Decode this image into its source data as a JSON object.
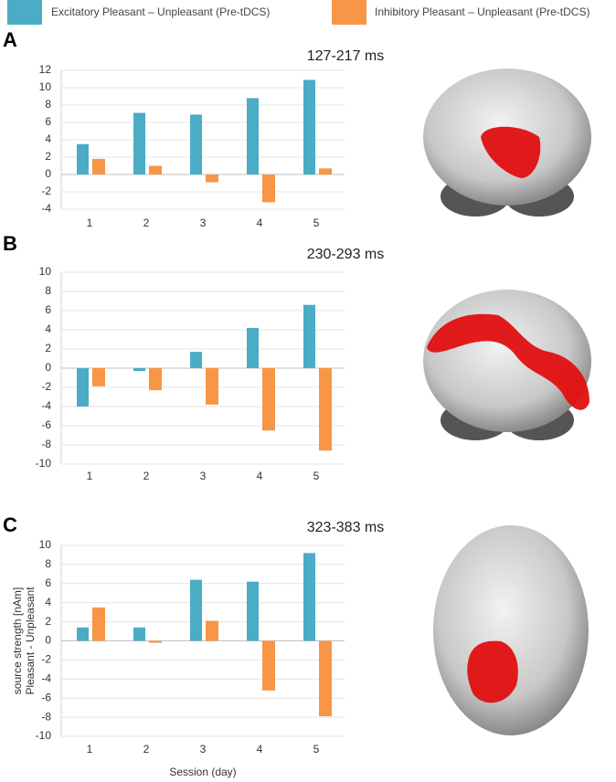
{
  "chart_data": [
    {
      "type": "bar",
      "panel_label": "A",
      "title": "127-217 ms",
      "categories": [
        "1",
        "2",
        "3",
        "4",
        "5"
      ],
      "series": [
        {
          "name": "Excitatory Pleasant – Unpleasant (Pre-tDCS)",
          "color": "#4bacc6",
          "values": [
            3.5,
            7.1,
            6.9,
            8.8,
            10.9
          ]
        },
        {
          "name": "Inhibitory Pleasant – Unpleasant (Pre-tDCS)",
          "color": "#f79646",
          "values": [
            1.8,
            1.0,
            -0.9,
            -3.2,
            0.7
          ]
        }
      ],
      "ylim": [
        -4,
        12
      ],
      "yticks": [
        -4,
        -2,
        0,
        2,
        4,
        6,
        8,
        10,
        12
      ],
      "grid": true
    },
    {
      "type": "bar",
      "panel_label": "B",
      "title": "230-293 ms",
      "categories": [
        "1",
        "2",
        "3",
        "4",
        "5"
      ],
      "series": [
        {
          "color": "#4bacc6",
          "values": [
            -4.0,
            -0.3,
            1.7,
            4.2,
            6.6
          ]
        },
        {
          "color": "#f79646",
          "values": [
            -1.9,
            -2.3,
            -3.8,
            -6.5,
            -8.6
          ]
        }
      ],
      "ylim": [
        -10,
        10
      ],
      "yticks": [
        -10,
        -8,
        -6,
        -4,
        -2,
        0,
        2,
        4,
        6,
        8,
        10
      ],
      "grid": true
    },
    {
      "type": "bar",
      "panel_label": "C",
      "title": "323-383 ms",
      "categories": [
        "1",
        "2",
        "3",
        "4",
        "5"
      ],
      "series": [
        {
          "color": "#4bacc6",
          "values": [
            1.4,
            1.4,
            6.4,
            6.2,
            9.2
          ]
        },
        {
          "color": "#f79646",
          "values": [
            3.5,
            -0.2,
            2.1,
            -5.2,
            -7.9
          ]
        }
      ],
      "ylim": [
        -10,
        10
      ],
      "yticks": [
        -10,
        -8,
        -6,
        -4,
        -2,
        0,
        2,
        4,
        6,
        8,
        10
      ],
      "grid": true,
      "ylabel": [
        "source strength [nAm]",
        "Pleasant - Unpleasant"
      ],
      "xlabel": "Session (day)"
    }
  ]
}
